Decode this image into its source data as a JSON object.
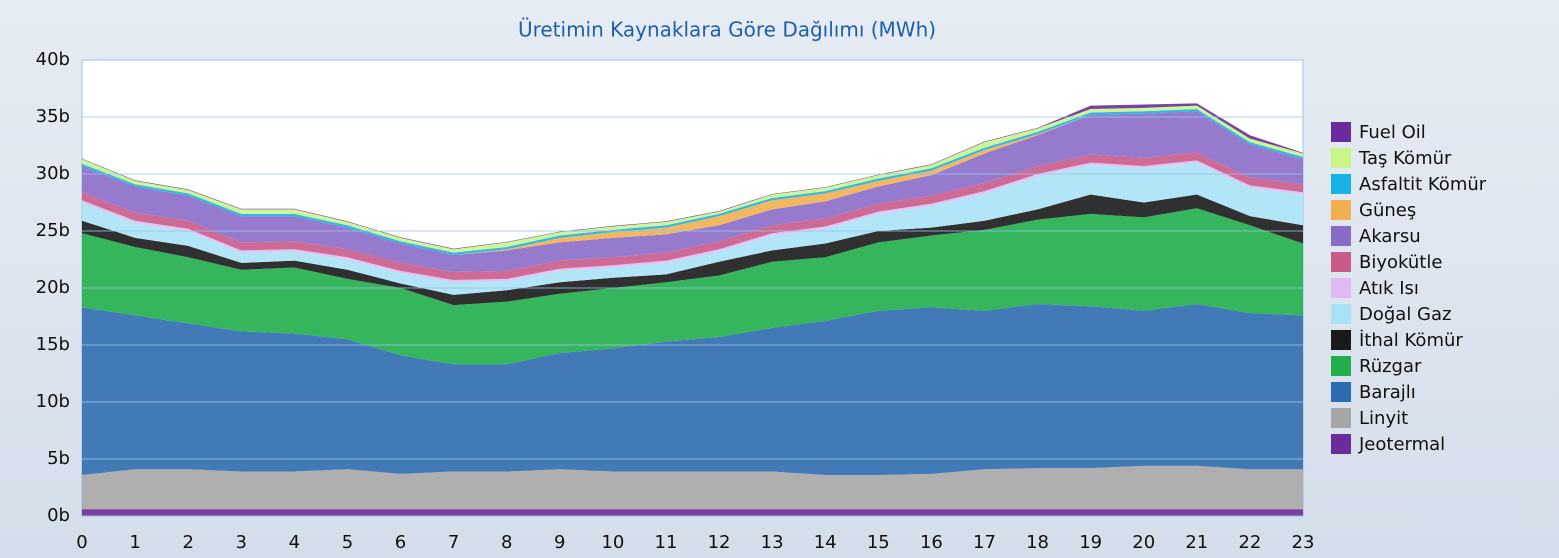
{
  "chart_data": {
    "type": "stacked_area",
    "title": "Üretimin Kaynaklara Göre Dağılımı (MWh)",
    "x": [
      0,
      1,
      2,
      3,
      4,
      5,
      6,
      7,
      8,
      9,
      10,
      11,
      12,
      13,
      14,
      15,
      16,
      17,
      18,
      19,
      20,
      21,
      22,
      23
    ],
    "xlim": [
      0,
      23
    ],
    "ylim": [
      0,
      40000
    ],
    "yticks": [
      {
        "value": 0,
        "label": "0b"
      },
      {
        "value": 5000,
        "label": "5b"
      },
      {
        "value": 10000,
        "label": "10b"
      },
      {
        "value": 15000,
        "label": "15b"
      },
      {
        "value": 20000,
        "label": "20b"
      },
      {
        "value": 25000,
        "label": "25b"
      },
      {
        "value": 30000,
        "label": "30b"
      },
      {
        "value": 35000,
        "label": "35b"
      },
      {
        "value": 40000,
        "label": "40b"
      }
    ],
    "grid": true,
    "legend": "right",
    "series": [
      {
        "name": "Jeotermal",
        "color": "#6a2c9a",
        "values": [
          600,
          600,
          600,
          600,
          600,
          600,
          600,
          600,
          600,
          600,
          600,
          600,
          600,
          600,
          600,
          600,
          600,
          600,
          600,
          600,
          600,
          600,
          600,
          600
        ]
      },
      {
        "name": "Linyit",
        "color": "#a6a6a6",
        "values": [
          3000,
          3500,
          3500,
          3300,
          3300,
          3500,
          3100,
          3300,
          3300,
          3500,
          3300,
          3300,
          3300,
          3300,
          3000,
          3000,
          3100,
          3500,
          3600,
          3600,
          3800,
          3800,
          3500,
          3500
        ]
      },
      {
        "name": "Barajlı",
        "color": "#2d6cb0",
        "values": [
          14700,
          13500,
          12800,
          12300,
          12100,
          11400,
          10400,
          9400,
          9400,
          10200,
          10800,
          11400,
          11800,
          12600,
          13500,
          14400,
          14600,
          13900,
          14400,
          14200,
          13600,
          14200,
          13700,
          13500
        ]
      },
      {
        "name": "Rüzgar",
        "color": "#1fae4a",
        "values": [
          6500,
          6000,
          5800,
          5400,
          5800,
          5300,
          5900,
          5200,
          5500,
          5200,
          5300,
          5200,
          5400,
          5800,
          5600,
          6000,
          6300,
          7100,
          7400,
          8100,
          8200,
          8400,
          7700,
          6300
        ]
      },
      {
        "name": "İthal Kömür",
        "color": "#1a1a1a",
        "values": [
          1100,
          800,
          1000,
          600,
          600,
          800,
          400,
          900,
          1000,
          1000,
          900,
          700,
          1200,
          1000,
          1200,
          1000,
          700,
          800,
          900,
          1700,
          1300,
          1200,
          800,
          1600
        ]
      },
      {
        "name": "Doğal Gaz",
        "color": "#a8e2f6",
        "values": [
          1600,
          1300,
          1300,
          900,
          800,
          900,
          900,
          1100,
          800,
          1000,
          900,
          1000,
          900,
          1300,
          1300,
          1500,
          1900,
          2400,
          2900,
          2600,
          3000,
          2800,
          2500,
          2700
        ]
      },
      {
        "name": "Atık Isı",
        "color": "#e2baf2",
        "values": [
          200,
          200,
          200,
          200,
          200,
          200,
          200,
          200,
          200,
          200,
          200,
          200,
          200,
          200,
          200,
          200,
          200,
          200,
          200,
          200,
          200,
          200,
          200,
          200
        ]
      },
      {
        "name": "Biyokütle",
        "color": "#c85a8a",
        "values": [
          700,
          700,
          700,
          700,
          700,
          700,
          700,
          700,
          700,
          700,
          700,
          700,
          700,
          700,
          700,
          700,
          700,
          700,
          700,
          700,
          700,
          700,
          700,
          700
        ]
      },
      {
        "name": "Akarsu",
        "color": "#8a6cc8",
        "values": [
          2300,
          2300,
          2200,
          2300,
          2200,
          1900,
          1700,
          1500,
          1800,
          1600,
          1700,
          1600,
          1400,
          1400,
          1500,
          1500,
          1800,
          2600,
          2700,
          3500,
          3900,
          3600,
          2900,
          2200
        ]
      },
      {
        "name": "Güneş",
        "color": "#f0b050",
        "values": [
          0,
          0,
          0,
          0,
          0,
          0,
          0,
          0,
          100,
          400,
          500,
          600,
          800,
          800,
          700,
          500,
          400,
          300,
          100,
          0,
          0,
          0,
          0,
          0
        ]
      },
      {
        "name": "Asfaltit Kömür",
        "color": "#1ab0e8",
        "values": [
          200,
          200,
          200,
          200,
          200,
          200,
          200,
          200,
          200,
          200,
          200,
          200,
          200,
          200,
          200,
          200,
          200,
          200,
          200,
          200,
          200,
          200,
          200,
          200
        ]
      },
      {
        "name": "Taş Kömür",
        "color": "#c8f58a",
        "values": [
          400,
          300,
          300,
          400,
          400,
          300,
          300,
          300,
          400,
          300,
          300,
          300,
          200,
          300,
          300,
          300,
          300,
          500,
          300,
          300,
          300,
          300,
          300,
          300
        ]
      },
      {
        "name": "Fuel Oil",
        "color": "#6a2c9a",
        "values": [
          50,
          50,
          50,
          50,
          50,
          50,
          50,
          50,
          50,
          50,
          50,
          50,
          50,
          50,
          50,
          50,
          50,
          50,
          50,
          300,
          300,
          200,
          300,
          50
        ]
      }
    ]
  }
}
